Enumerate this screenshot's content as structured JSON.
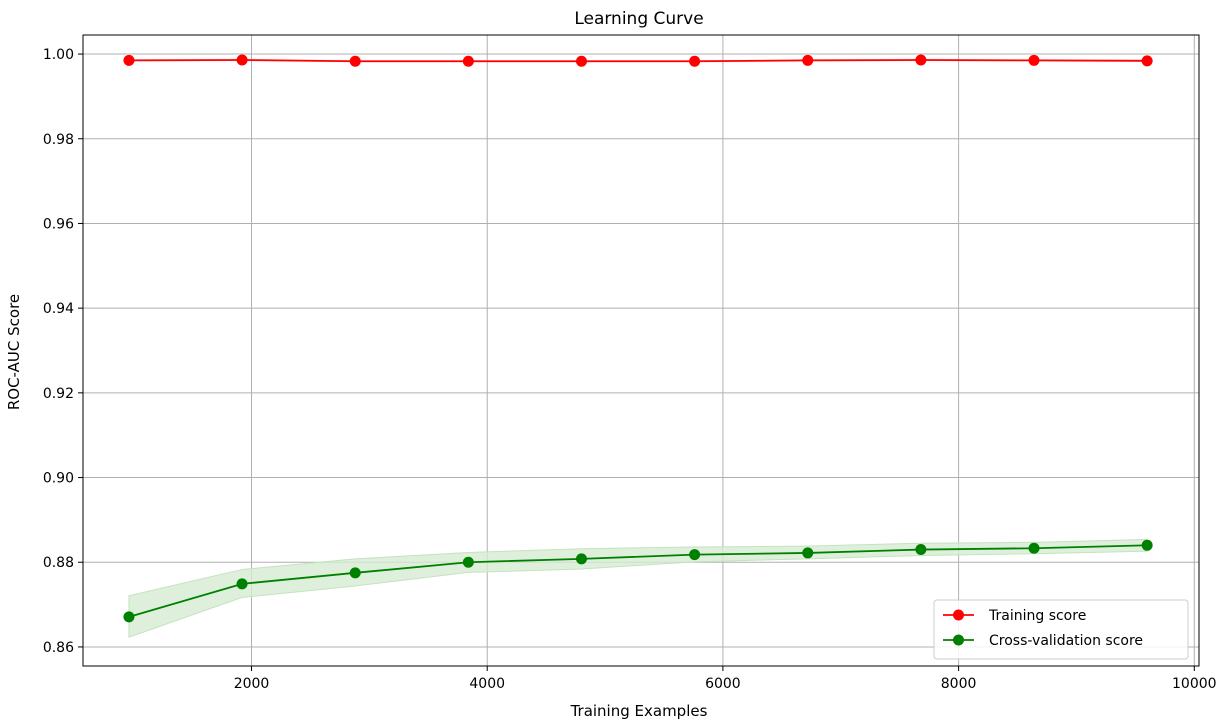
{
  "chart_data": {
    "type": "line",
    "title": "Learning Curve",
    "xlabel": "Training Examples",
    "ylabel": "ROC-AUC Score",
    "xlim": [
      570,
      10040
    ],
    "ylim": [
      0.8555,
      1.0045
    ],
    "xticks": [
      2000,
      4000,
      6000,
      8000,
      10000
    ],
    "yticks": [
      0.86,
      0.88,
      0.9,
      0.92,
      0.94,
      0.96,
      0.98,
      1.0
    ],
    "grid": true,
    "legend_position": "bottom-right",
    "x": [
      960,
      1920,
      2880,
      3840,
      4800,
      5760,
      6720,
      7680,
      8640,
      9600
    ],
    "series": [
      {
        "name": "Training score",
        "color": "#ff0000",
        "values": [
          0.9985,
          0.9986,
          0.9983,
          0.9983,
          0.9983,
          0.9983,
          0.9985,
          0.9986,
          0.9985,
          0.9984
        ],
        "band_low": [
          0.9982,
          0.9983,
          0.998,
          0.998,
          0.998,
          0.998,
          0.9982,
          0.9983,
          0.9982,
          0.9981
        ],
        "band_high": [
          0.9988,
          0.9989,
          0.9986,
          0.9986,
          0.9986,
          0.9986,
          0.9988,
          0.9989,
          0.9988,
          0.9987
        ]
      },
      {
        "name": "Cross-validation score",
        "color": "#008000",
        "band_color": "#d6ecd2",
        "values": [
          0.8671,
          0.8749,
          0.8775,
          0.88,
          0.8808,
          0.8818,
          0.8822,
          0.883,
          0.8833,
          0.884
        ],
        "band_low": [
          0.8623,
          0.8717,
          0.8744,
          0.8776,
          0.8784,
          0.8801,
          0.8808,
          0.8816,
          0.882,
          0.8826
        ],
        "band_high": [
          0.8721,
          0.8783,
          0.8808,
          0.8823,
          0.8832,
          0.8836,
          0.8838,
          0.8845,
          0.8847,
          0.8854
        ]
      }
    ]
  }
}
